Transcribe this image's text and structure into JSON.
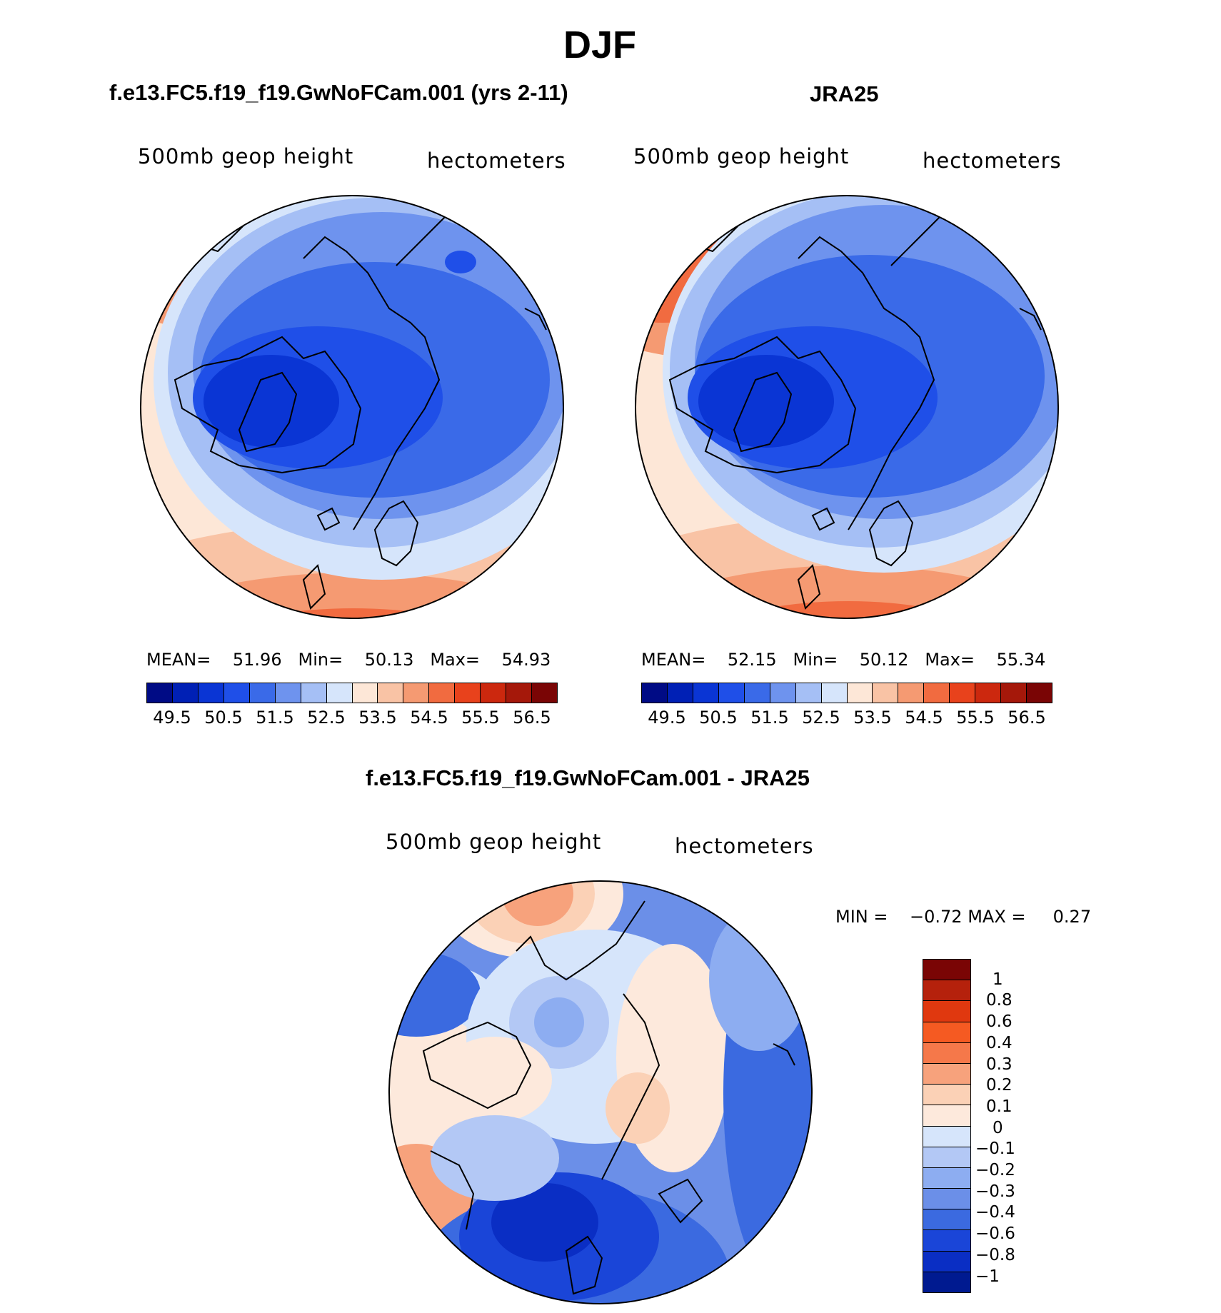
{
  "title": "DJF",
  "panels": [
    {
      "title": "f.e13.FC5.f19_f19.GwNoFCam.001 (yrs 2-11)",
      "left_label": "500mb geop height",
      "right_label": "hectometers",
      "stats": {
        "mean_label": "MEAN=",
        "mean": "51.96",
        "min_label": "Min=",
        "min": "50.13",
        "max_label": "Max=",
        "max": "54.93"
      }
    },
    {
      "title": "JRA25",
      "left_label": "500mb geop height",
      "right_label": "hectometers",
      "stats": {
        "mean_label": "MEAN=",
        "mean": "52.15",
        "min_label": "Min=",
        "min": "50.12",
        "max_label": "Max=",
        "max": "55.34"
      }
    },
    {
      "title": "f.e13.FC5.f19_f19.GwNoFCam.001 - JRA25",
      "left_label": "500mb geop height",
      "right_label": "hectometers",
      "stats": {
        "min_label": "MIN =",
        "min": "−0.72",
        "max_label": "MAX =",
        "max": "0.27"
      }
    }
  ],
  "colorbar_top": {
    "colors": [
      "#000b85",
      "#0020b5",
      "#0a35d4",
      "#1f4fe8",
      "#3a6ae8",
      "#6e93ee",
      "#a5bff5",
      "#d6e5fb",
      "#fde7d7",
      "#f9c3a5",
      "#f59a72",
      "#f16b40",
      "#e8421c",
      "#cc280e",
      "#a5180a",
      "#7a0505"
    ],
    "tick_labels": [
      "49.5",
      "50.5",
      "51.5",
      "52.5",
      "53.5",
      "54.5",
      "55.5",
      "56.5"
    ]
  },
  "colorbar_diff": {
    "colors": [
      "#7a0505",
      "#b5210c",
      "#e0380f",
      "#f55a22",
      "#f5784a",
      "#f7a27c",
      "#fbd1b6",
      "#fde9dc",
      "#d6e5fb",
      "#b3c8f5",
      "#8dadf1",
      "#6b8fe8",
      "#3b6ae0",
      "#1a45d8",
      "#0a2ec4",
      "#001a90"
    ],
    "tick_labels": [
      "1",
      "0.8",
      "0.6",
      "0.4",
      "0.3",
      "0.2",
      "0.1",
      "0",
      "−0.1",
      "−0.2",
      "−0.3",
      "−0.4",
      "−0.6",
      "−0.8",
      "−1"
    ]
  },
  "map_fields": {
    "model": {
      "mean": 51.96,
      "min": 50.13,
      "max": 54.93
    },
    "jra25": {
      "mean": 52.15,
      "min": 50.12,
      "max": 55.34
    },
    "difference": {
      "min": -0.72,
      "max": 0.27
    }
  }
}
